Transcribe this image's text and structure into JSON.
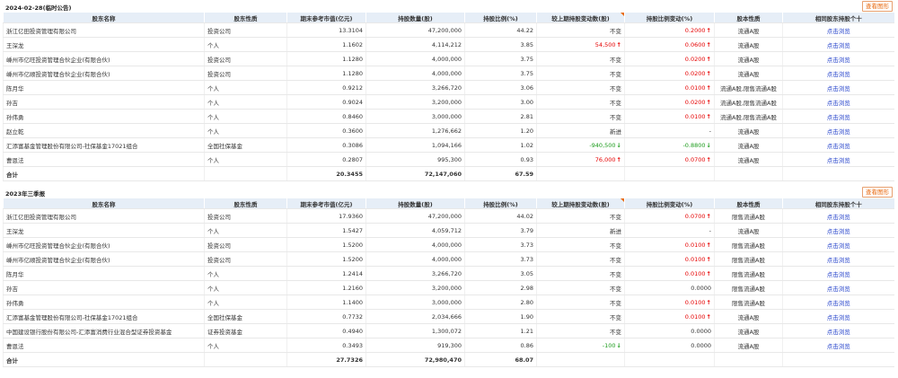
{
  "buttons": {
    "chart": "查看图形"
  },
  "headers": [
    "股东名称",
    "股东性质",
    "期末参考市值(亿元)",
    "持股数量(股)",
    "持股比例(%)",
    "较上期持股变动数(股)",
    "持股比例变动(%)",
    "股本性质",
    "相同股东持股个十"
  ],
  "sections": [
    {
      "title": "2024-02-28(临时公告)",
      "rows": [
        {
          "name": "浙江亿田投资管理有限公司",
          "type": "投资公司",
          "value": "13.3104",
          "shares": "47,200,000",
          "ratio": "44.22",
          "change": "不变",
          "change_dir": "",
          "ratio_change": "0.2000",
          "rc_dir": "up",
          "nature": "流通A股",
          "link": "点击浏览"
        },
        {
          "name": "王深龙",
          "type": "个人",
          "value": "1.1602",
          "shares": "4,114,212",
          "ratio": "3.85",
          "change": "54,500",
          "change_dir": "up",
          "ratio_change": "0.0600",
          "rc_dir": "up",
          "nature": "流通A股",
          "link": "点击浏览"
        },
        {
          "name": "嵊州市亿旺投资管理合伙企业(有限合伙)",
          "type": "投资公司",
          "value": "1.1280",
          "shares": "4,000,000",
          "ratio": "3.75",
          "change": "不变",
          "change_dir": "",
          "ratio_change": "0.0200",
          "rc_dir": "up",
          "nature": "流通A股",
          "link": "点击浏览"
        },
        {
          "name": "嵊州市亿顺投资管理合伙企业(有限合伙)",
          "type": "投资公司",
          "value": "1.1280",
          "shares": "4,000,000",
          "ratio": "3.75",
          "change": "不变",
          "change_dir": "",
          "ratio_change": "0.0200",
          "rc_dir": "up",
          "nature": "流通A股",
          "link": "点击浏览"
        },
        {
          "name": "陈月华",
          "type": "个人",
          "value": "0.9212",
          "shares": "3,266,720",
          "ratio": "3.06",
          "change": "不变",
          "change_dir": "",
          "ratio_change": "0.0100",
          "rc_dir": "up",
          "nature": "流通A股,限售流通A股",
          "link": "点击浏览"
        },
        {
          "name": "孙吉",
          "type": "个人",
          "value": "0.9024",
          "shares": "3,200,000",
          "ratio": "3.00",
          "change": "不变",
          "change_dir": "",
          "ratio_change": "0.0200",
          "rc_dir": "up",
          "nature": "流通A股,限售流通A股",
          "link": "点击浏览"
        },
        {
          "name": "孙伟勇",
          "type": "个人",
          "value": "0.8460",
          "shares": "3,000,000",
          "ratio": "2.81",
          "change": "不变",
          "change_dir": "",
          "ratio_change": "0.0100",
          "rc_dir": "up",
          "nature": "流通A股,限售流通A股",
          "link": "点击浏览"
        },
        {
          "name": "赵立乾",
          "type": "个人",
          "value": "0.3600",
          "shares": "1,276,662",
          "ratio": "1.20",
          "change": "新进",
          "change_dir": "",
          "ratio_change": "-",
          "rc_dir": "",
          "nature": "流通A股",
          "link": "点击浏览"
        },
        {
          "name": "汇添富基金管理股份有限公司-社保基金17021组合",
          "type": "全国社保基金",
          "value": "0.3086",
          "shares": "1,094,166",
          "ratio": "1.02",
          "change": "-940,500",
          "change_dir": "down",
          "ratio_change": "-0.8800",
          "rc_dir": "down",
          "nature": "流通A股",
          "link": "点击浏览"
        },
        {
          "name": "曹恩法",
          "type": "个人",
          "value": "0.2807",
          "shares": "995,300",
          "ratio": "0.93",
          "change": "76,000",
          "change_dir": "up",
          "ratio_change": "0.0700",
          "rc_dir": "up",
          "nature": "流通A股",
          "link": "点击浏览"
        }
      ],
      "total": {
        "label": "合计",
        "value": "20.3455",
        "shares": "72,147,060",
        "ratio": "67.59"
      }
    },
    {
      "title": "2023年三季报",
      "rows": [
        {
          "name": "浙江亿田投资管理有限公司",
          "type": "投资公司",
          "value": "17.9360",
          "shares": "47,200,000",
          "ratio": "44.02",
          "change": "不变",
          "change_dir": "",
          "ratio_change": "0.0700",
          "rc_dir": "up",
          "nature": "限售流通A股",
          "link": "点击浏览"
        },
        {
          "name": "王深龙",
          "type": "个人",
          "value": "1.5427",
          "shares": "4,059,712",
          "ratio": "3.79",
          "change": "新进",
          "change_dir": "",
          "ratio_change": "-",
          "rc_dir": "",
          "nature": "流通A股",
          "link": "点击浏览"
        },
        {
          "name": "嵊州市亿旺投资管理合伙企业(有限合伙)",
          "type": "投资公司",
          "value": "1.5200",
          "shares": "4,000,000",
          "ratio": "3.73",
          "change": "不变",
          "change_dir": "",
          "ratio_change": "0.0100",
          "rc_dir": "up",
          "nature": "限售流通A股",
          "link": "点击浏览"
        },
        {
          "name": "嵊州市亿顺投资管理合伙企业(有限合伙)",
          "type": "投资公司",
          "value": "1.5200",
          "shares": "4,000,000",
          "ratio": "3.73",
          "change": "不变",
          "change_dir": "",
          "ratio_change": "0.0100",
          "rc_dir": "up",
          "nature": "限售流通A股",
          "link": "点击浏览"
        },
        {
          "name": "陈月华",
          "type": "个人",
          "value": "1.2414",
          "shares": "3,266,720",
          "ratio": "3.05",
          "change": "不变",
          "change_dir": "",
          "ratio_change": "0.0100",
          "rc_dir": "up",
          "nature": "限售流通A股",
          "link": "点击浏览"
        },
        {
          "name": "孙吉",
          "type": "个人",
          "value": "1.2160",
          "shares": "3,200,000",
          "ratio": "2.98",
          "change": "不变",
          "change_dir": "",
          "ratio_change": "0.0000",
          "rc_dir": "",
          "nature": "限售流通A股",
          "link": "点击浏览"
        },
        {
          "name": "孙伟勇",
          "type": "个人",
          "value": "1.1400",
          "shares": "3,000,000",
          "ratio": "2.80",
          "change": "不变",
          "change_dir": "",
          "ratio_change": "0.0100",
          "rc_dir": "up",
          "nature": "限售流通A股",
          "link": "点击浏览"
        },
        {
          "name": "汇添富基金管理股份有限公司-社保基金17021组合",
          "type": "全国社保基金",
          "value": "0.7732",
          "shares": "2,034,666",
          "ratio": "1.90",
          "change": "不变",
          "change_dir": "",
          "ratio_change": "0.0100",
          "rc_dir": "up",
          "nature": "流通A股",
          "link": "点击浏览"
        },
        {
          "name": "中国建设银行股份有限公司-汇添富消费行业混合型证券投资基金",
          "type": "证券投资基金",
          "value": "0.4940",
          "shares": "1,300,072",
          "ratio": "1.21",
          "change": "不变",
          "change_dir": "",
          "ratio_change": "0.0000",
          "rc_dir": "",
          "nature": "流通A股",
          "link": "点击浏览"
        },
        {
          "name": "曹恩法",
          "type": "个人",
          "value": "0.3493",
          "shares": "919,300",
          "ratio": "0.86",
          "change": "-100",
          "change_dir": "down",
          "ratio_change": "0.0000",
          "rc_dir": "",
          "nature": "流通A股",
          "link": "点击浏览"
        }
      ],
      "total": {
        "label": "合计",
        "value": "27.7326",
        "shares": "72,980,470",
        "ratio": "68.07"
      }
    }
  ]
}
